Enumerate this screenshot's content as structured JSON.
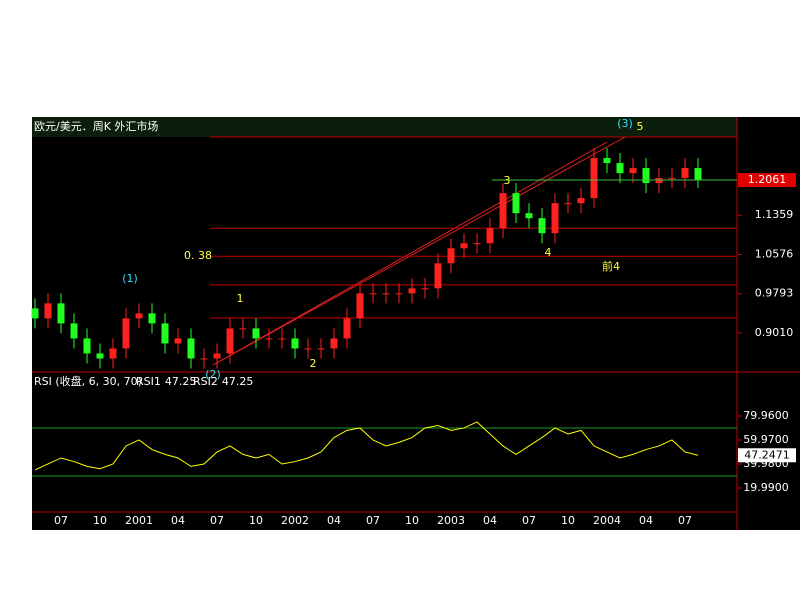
{
  "header": {
    "title": "欧元/美元．周K 外汇市场"
  },
  "chart_data": [
    {
      "type": "candlestick",
      "categories": [
        null,
        null,
        "07",
        null,
        null,
        "10",
        null,
        null,
        "2001",
        null,
        null,
        "04",
        null,
        null,
        "07",
        null,
        null,
        "10",
        null,
        null,
        "2002",
        null,
        null,
        "04",
        null,
        null,
        "07",
        null,
        null,
        "10",
        null,
        null,
        "2003",
        null,
        null,
        "04",
        null,
        null,
        "07",
        null,
        null,
        "10",
        null,
        null,
        "2004",
        null,
        null,
        "04",
        null,
        null,
        "07",
        null
      ],
      "open": [
        0.95,
        0.93,
        0.96,
        0.92,
        0.89,
        0.86,
        0.85,
        0.87,
        0.93,
        0.94,
        0.92,
        0.88,
        0.89,
        0.85,
        0.85,
        0.86,
        0.91,
        0.91,
        0.89,
        0.89,
        0.89,
        0.87,
        0.87,
        0.87,
        0.89,
        0.93,
        0.98,
        0.98,
        0.98,
        0.98,
        0.99,
        0.99,
        1.04,
        1.07,
        1.08,
        1.08,
        1.11,
        1.18,
        1.14,
        1.13,
        1.1,
        1.16,
        1.16,
        1.17,
        1.25,
        1.24,
        1.22,
        1.23,
        1.2,
        1.21,
        1.21,
        1.23
      ],
      "high": [
        0.97,
        0.98,
        0.98,
        0.94,
        0.91,
        0.88,
        0.89,
        0.95,
        0.96,
        0.96,
        0.94,
        0.91,
        0.91,
        0.87,
        0.88,
        0.93,
        0.93,
        0.93,
        0.91,
        0.91,
        0.91,
        0.89,
        0.89,
        0.91,
        0.95,
        1.0,
        1.0,
        1.0,
        1.0,
        1.01,
        1.01,
        1.06,
        1.09,
        1.1,
        1.1,
        1.13,
        1.2,
        1.2,
        1.16,
        1.15,
        1.18,
        1.18,
        1.19,
        1.27,
        1.27,
        1.26,
        1.25,
        1.25,
        1.23,
        1.23,
        1.25,
        1.25
      ],
      "low": [
        0.91,
        0.91,
        0.9,
        0.87,
        0.84,
        0.83,
        0.83,
        0.85,
        0.91,
        0.9,
        0.86,
        0.86,
        0.83,
        0.83,
        0.83,
        0.84,
        0.89,
        0.87,
        0.87,
        0.87,
        0.85,
        0.85,
        0.85,
        0.85,
        0.87,
        0.91,
        0.96,
        0.96,
        0.96,
        0.96,
        0.97,
        0.97,
        1.02,
        1.05,
        1.06,
        1.06,
        1.09,
        1.12,
        1.11,
        1.08,
        1.08,
        1.14,
        1.14,
        1.15,
        1.22,
        1.2,
        1.2,
        1.18,
        1.18,
        1.19,
        1.19,
        1.19
      ],
      "close": [
        0.93,
        0.96,
        0.92,
        0.89,
        0.86,
        0.85,
        0.87,
        0.93,
        0.94,
        0.92,
        0.88,
        0.89,
        0.85,
        0.85,
        0.86,
        0.91,
        0.91,
        0.89,
        0.89,
        0.89,
        0.87,
        0.87,
        0.87,
        0.89,
        0.93,
        0.98,
        0.98,
        0.98,
        0.98,
        0.99,
        0.99,
        1.04,
        1.07,
        1.08,
        1.08,
        1.11,
        1.18,
        1.14,
        1.13,
        1.1,
        1.16,
        1.16,
        1.17,
        1.25,
        1.24,
        1.22,
        1.23,
        1.2,
        1.21,
        1.21,
        1.23,
        1.2061
      ],
      "up_color": "#ff2020",
      "down_color": "#20ff20",
      "ylim": [
        0.823,
        1.292
      ],
      "yticks": [
        1.1359,
        1.0576,
        0.9793,
        {
          "value": 0.901,
          "label": "0.9010"
        }
      ],
      "levels": [
        1.11,
        1.054,
        0.997,
        0.931
      ],
      "annotations": [
        "(1)",
        "(2)",
        "(3)",
        "5",
        "1",
        "2",
        "3",
        "4",
        "0. 38",
        "前4"
      ]
    },
    {
      "type": "line",
      "title": "RSI (收盘, 6, 30, 70)",
      "legend": [
        {
          "name": "RSI1",
          "value": 47.25
        },
        {
          "name": "RSI2",
          "value": 47.25
        }
      ],
      "values": [
        35,
        40,
        45,
        42,
        38,
        36,
        40,
        55,
        60,
        52,
        48,
        45,
        38,
        40,
        50,
        55,
        48,
        45,
        48,
        40,
        42,
        45,
        50,
        62,
        68,
        70,
        60,
        55,
        58,
        62,
        70,
        72,
        68,
        70,
        75,
        65,
        55,
        48,
        55,
        62,
        70,
        65,
        68,
        55,
        50,
        45,
        48,
        52,
        55,
        60,
        50,
        47.25
      ],
      "color": "#ffff00",
      "current_value": 47.2471,
      "ylim": [
        0,
        116.6
      ],
      "yticks": [
        {
          "value": 79.96,
          "label": "79.9600"
        },
        {
          "value": 59.97,
          "label": "59.9700"
        },
        {
          "value": 39.98,
          "label": "39.9800"
        },
        {
          "value": 19.99,
          "label": "19.9900"
        }
      ],
      "reference_lines": [
        70,
        30
      ]
    }
  ]
}
